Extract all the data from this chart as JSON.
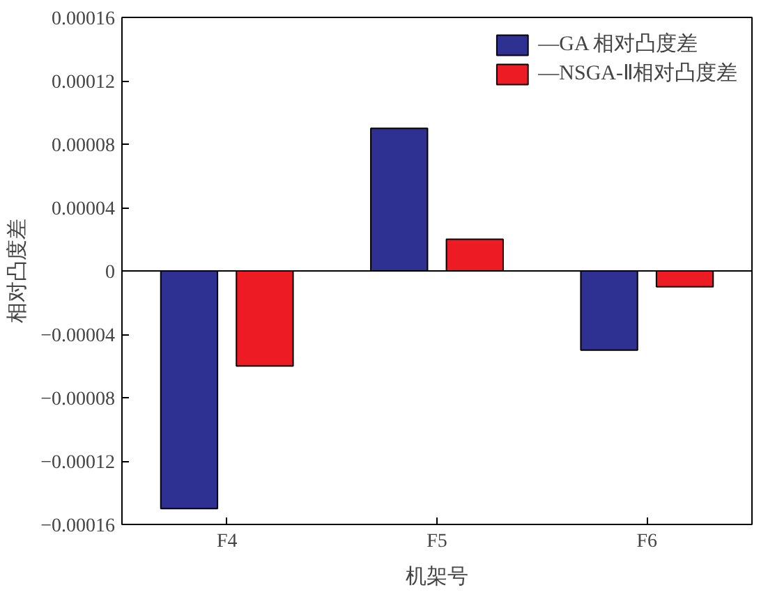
{
  "chart_data": {
    "type": "bar",
    "xlabel": "机架号",
    "ylabel": "相对凸度差",
    "categories": [
      "F4",
      "F5",
      "F6"
    ],
    "series": [
      {
        "name": "—GA 相对凸度差",
        "color": "#2e3192",
        "values": [
          -0.00015,
          9e-05,
          -5e-05
        ]
      },
      {
        "name": "—NSGA-Ⅱ相对凸度差",
        "color": "#ed1c24",
        "values": [
          -6e-05,
          2e-05,
          -1e-05
        ]
      }
    ],
    "ylim": [
      -0.00016,
      0.00016
    ],
    "yticks": [
      {
        "value": -0.00016,
        "label": "−0.00016"
      },
      {
        "value": -0.00012,
        "label": "−0.00012"
      },
      {
        "value": -8e-05,
        "label": "−0.00008"
      },
      {
        "value": -4e-05,
        "label": "−0.00004"
      },
      {
        "value": 0,
        "label": "0"
      },
      {
        "value": 4e-05,
        "label": "0.00004"
      },
      {
        "value": 8e-05,
        "label": "0.00008"
      },
      {
        "value": 0.00012,
        "label": "0.00012"
      },
      {
        "value": 0.00016,
        "label": "0.00016"
      }
    ],
    "ref_lines": [
      {
        "axis": "y",
        "value": 0
      }
    ],
    "grid": false,
    "legend": "top right"
  }
}
